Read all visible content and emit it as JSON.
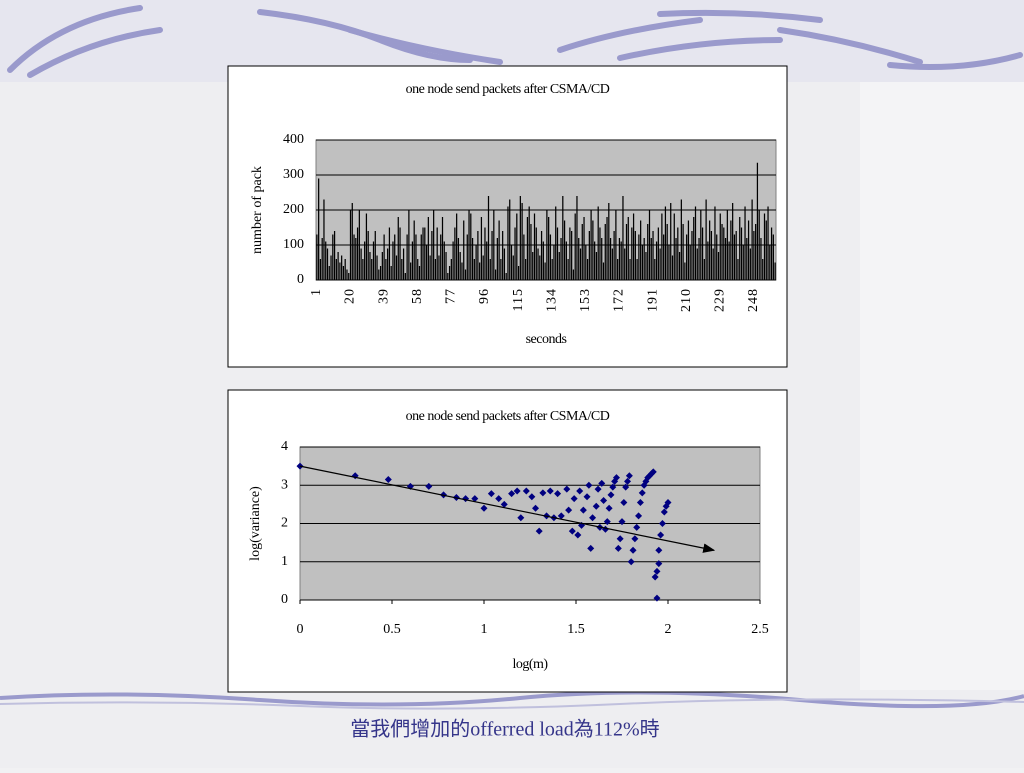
{
  "chart_data": [
    {
      "type": "bar",
      "title": "one node send packets after CSMA/CD",
      "xlabel": "seconds",
      "ylabel": "number of pack",
      "color": "#000000",
      "categories": [
        "1",
        null,
        null,
        null,
        null,
        null,
        null,
        null,
        null,
        null,
        null,
        null,
        null,
        null,
        null,
        null,
        null,
        null,
        null,
        "20",
        null,
        null,
        null,
        null,
        null,
        null,
        null,
        null,
        null,
        null,
        null,
        null,
        null,
        null,
        null,
        null,
        null,
        null,
        "39",
        null,
        null,
        null,
        null,
        null,
        null,
        null,
        null,
        null,
        null,
        null,
        null,
        null,
        null,
        null,
        null,
        null,
        null,
        "58",
        null,
        null,
        null,
        null,
        null,
        null,
        null,
        null,
        null,
        null,
        null,
        null,
        null,
        null,
        null,
        null,
        null,
        null,
        "77",
        null,
        null,
        null,
        null,
        null,
        null,
        null,
        null,
        null,
        null,
        null,
        null,
        null,
        null,
        null,
        null,
        null,
        null,
        "96",
        null,
        null,
        null,
        null,
        null,
        null,
        null,
        null,
        null,
        null,
        null,
        null,
        null,
        null,
        null,
        null,
        null,
        null,
        "115",
        null,
        null,
        null,
        null,
        null,
        null,
        null,
        null,
        null,
        null,
        null,
        null,
        null,
        null,
        null,
        null,
        null,
        null,
        "134",
        null,
        null,
        null,
        null,
        null,
        null,
        null,
        null,
        null,
        null,
        null,
        null,
        null,
        null,
        null,
        null,
        null,
        null,
        "153",
        null,
        null,
        null,
        null,
        null,
        null,
        null,
        null,
        null,
        null,
        null,
        null,
        null,
        null,
        null,
        null,
        null,
        null,
        "172",
        null,
        null,
        null,
        null,
        null,
        null,
        null,
        null,
        null,
        null,
        null,
        null,
        null,
        null,
        null,
        null,
        null,
        null,
        "191",
        null,
        null,
        null,
        null,
        null,
        null,
        null,
        null,
        null,
        null,
        null,
        null,
        null,
        null,
        null,
        null,
        null,
        null,
        "210",
        null,
        null,
        null,
        null,
        null,
        null,
        null,
        null,
        null,
        null,
        null,
        null,
        null,
        null,
        null,
        null,
        null,
        null,
        "229",
        null,
        null,
        null,
        null,
        null,
        null,
        null,
        null,
        null,
        null,
        null,
        null,
        null,
        null,
        null,
        null,
        null,
        null,
        "248",
        null,
        null,
        null,
        null,
        null,
        null,
        null,
        null,
        null,
        null,
        null,
        null
      ],
      "values": [
        130,
        290,
        60,
        120,
        230,
        110,
        90,
        40,
        70,
        130,
        140,
        60,
        80,
        50,
        70,
        40,
        60,
        30,
        20,
        200,
        220,
        130,
        120,
        150,
        200,
        90,
        60,
        110,
        190,
        140,
        80,
        60,
        110,
        140,
        70,
        30,
        40,
        80,
        130,
        60,
        90,
        150,
        40,
        110,
        130,
        70,
        180,
        150,
        60,
        90,
        20,
        130,
        200,
        50,
        110,
        170,
        130,
        60,
        40,
        130,
        150,
        150,
        100,
        180,
        70,
        140,
        200,
        60,
        150,
        70,
        130,
        180,
        110,
        80,
        20,
        40,
        60,
        110,
        150,
        190,
        120,
        80,
        50,
        170,
        30,
        130,
        200,
        190,
        120,
        60,
        100,
        140,
        50,
        180,
        70,
        150,
        110,
        240,
        60,
        140,
        200,
        30,
        120,
        170,
        60,
        140,
        90,
        20,
        210,
        230,
        100,
        70,
        150,
        190,
        40,
        240,
        220,
        130,
        60,
        180,
        210,
        160,
        80,
        190,
        150,
        90,
        70,
        140,
        110,
        50,
        200,
        180,
        130,
        60,
        100,
        210,
        150,
        80,
        120,
        240,
        170,
        110,
        60,
        150,
        140,
        30,
        190,
        240,
        120,
        90,
        160,
        180,
        100,
        60,
        140,
        200,
        170,
        110,
        80,
        210,
        150,
        120,
        50,
        160,
        180,
        220,
        120,
        90,
        140,
        200,
        60,
        120,
        110,
        240,
        90,
        160,
        180,
        60,
        150,
        190,
        140,
        60,
        130,
        170,
        100,
        120,
        80,
        160,
        200,
        120,
        140,
        60,
        110,
        150,
        90,
        190,
        130,
        210,
        160,
        100,
        220,
        70,
        190,
        120,
        150,
        80,
        230,
        160,
        50,
        130,
        170,
        100,
        140,
        180,
        210,
        90,
        120,
        200,
        150,
        60,
        230,
        110,
        170,
        140,
        90,
        210,
        130,
        80,
        190,
        160,
        150,
        120,
        200,
        110,
        170,
        220,
        130,
        140,
        60,
        180,
        150,
        100,
        210,
        120,
        170,
        90,
        230,
        140,
        160,
        335,
        200,
        120,
        60,
        190,
        170,
        210,
        100,
        150,
        130,
        50
      ],
      "ylim": [
        0,
        400
      ],
      "yticks": [
        0,
        100,
        200,
        300,
        400
      ],
      "grid": true
    },
    {
      "type": "scatter",
      "title": "one node send packets after CSMA/CD",
      "xlabel": "log(m)",
      "ylabel": "log(variance)",
      "color": "#000080",
      "x": [
        0,
        0.3,
        0.48,
        0.6,
        0.7,
        0.78,
        0.85,
        0.9,
        0.95,
        1.0,
        1.04,
        1.08,
        1.11,
        1.15,
        1.18,
        1.2,
        1.23,
        1.26,
        1.28,
        1.3,
        1.32,
        1.34,
        1.36,
        1.38,
        1.4,
        1.42,
        1.45,
        1.46,
        1.48,
        1.49,
        1.51,
        1.52,
        1.53,
        1.54,
        1.56,
        1.57,
        1.58,
        1.59,
        1.61,
        1.62,
        1.63,
        1.64,
        1.65,
        1.66,
        1.67,
        1.68,
        1.69,
        1.7,
        1.71,
        1.72,
        1.73,
        1.74,
        1.75,
        1.76,
        1.77,
        1.78,
        1.79,
        1.8,
        1.81,
        1.82,
        1.83,
        1.84,
        1.85,
        1.86,
        1.87,
        1.88,
        1.89,
        1.9,
        1.91,
        1.92,
        1.93,
        1.94,
        1.94,
        1.95,
        1.95,
        1.96,
        1.97,
        1.98,
        1.99,
        2.0
      ],
      "y": [
        3.5,
        3.25,
        3.15,
        2.97,
        2.97,
        2.75,
        2.68,
        2.65,
        2.65,
        2.4,
        2.78,
        2.65,
        2.5,
        2.78,
        2.85,
        2.15,
        2.85,
        2.7,
        2.4,
        1.8,
        2.8,
        2.2,
        2.85,
        2.15,
        2.78,
        2.2,
        2.9,
        2.35,
        1.8,
        2.65,
        1.7,
        2.85,
        1.95,
        2.35,
        2.7,
        3.0,
        1.35,
        2.15,
        2.45,
        2.9,
        1.9,
        3.05,
        2.6,
        1.85,
        2.05,
        2.4,
        2.75,
        2.95,
        3.1,
        3.2,
        1.35,
        1.6,
        2.05,
        2.55,
        2.95,
        3.1,
        3.25,
        1.0,
        1.3,
        1.6,
        1.9,
        2.2,
        2.55,
        2.8,
        3.0,
        3.1,
        3.2,
        3.25,
        3.3,
        3.35,
        0.6,
        0.05,
        0.75,
        0.95,
        1.3,
        1.7,
        2.0,
        2.3,
        2.45,
        2.55
      ],
      "trendline": {
        "x": [
          0,
          2.25
        ],
        "y": [
          3.5,
          1.3
        ]
      },
      "xlim": [
        0,
        2.5
      ],
      "xticks": [
        0,
        0.5,
        1,
        1.5,
        2,
        2.5
      ],
      "ylim": [
        0,
        4
      ],
      "yticks": [
        0,
        1,
        2,
        3,
        4
      ],
      "grid": true
    }
  ],
  "caption": "當我們增加的offerred load為112%時"
}
